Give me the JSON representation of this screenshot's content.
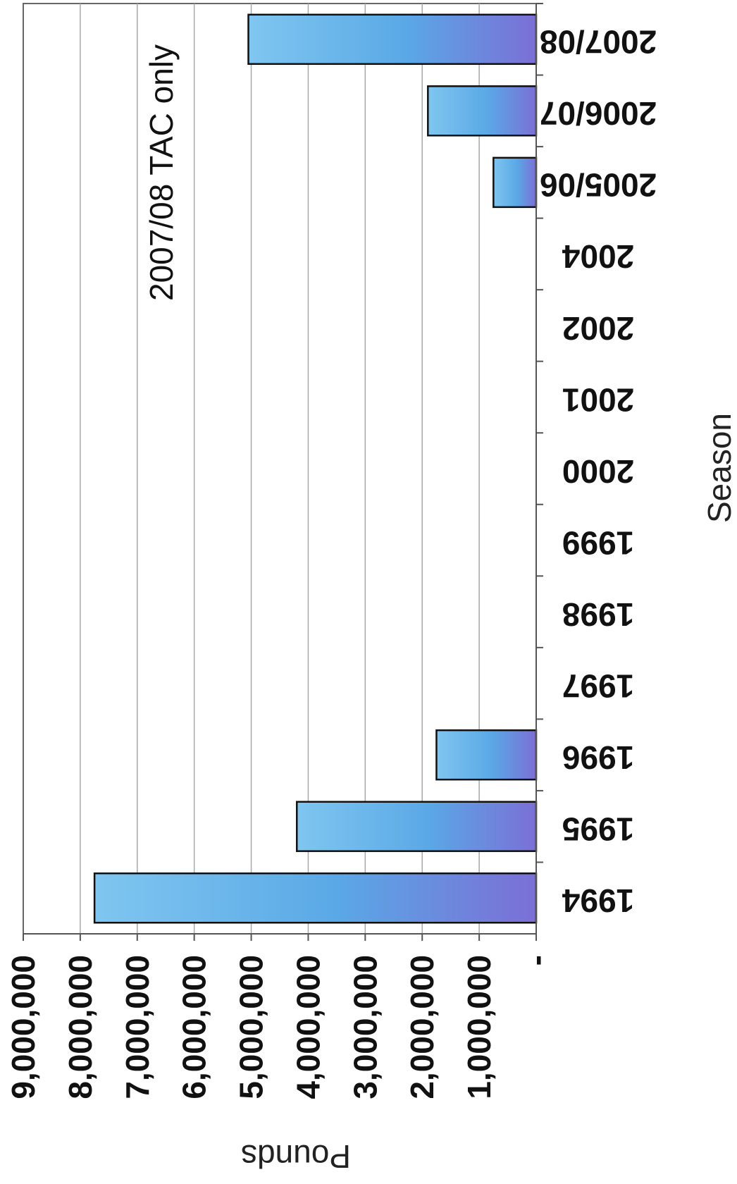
{
  "chart_data": {
    "type": "bar",
    "orientation": "horizontal",
    "rotation": "rotated 90° clockwise (scan orientation)",
    "categories": [
      "1994",
      "1995",
      "1996",
      "1997",
      "1998",
      "1999",
      "2000",
      "2001",
      "2002",
      "2004",
      "2005/06",
      "2006/07",
      "2007/08"
    ],
    "values": [
      7750000,
      4200000,
      1750000,
      0,
      0,
      0,
      0,
      0,
      0,
      0,
      750000,
      1900000,
      5050000
    ],
    "xlabel": "Season",
    "ylabel": "Pounds",
    "yticks": [
      "-",
      "1,000,000",
      "2,000,000",
      "3,000,000",
      "4,000,000",
      "5,000,000",
      "6,000,000",
      "7,000,000",
      "8,000,000",
      "9,000,000"
    ],
    "ylim": [
      0,
      9000000
    ],
    "grid": true,
    "annotation": "2007/08 TAC only",
    "colors": {
      "bar_light": "#7fc6f0",
      "bar_mid": "#5aa8e6",
      "bar_dark": "#7b6fd6",
      "grid": "#a8a8a8",
      "axis": "#555555"
    }
  }
}
